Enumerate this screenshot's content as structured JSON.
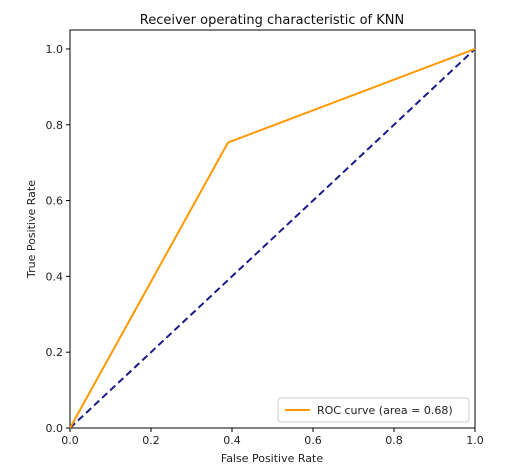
{
  "chart_data": {
    "type": "line",
    "title": "Receiver operating characteristic of KNN",
    "xlabel": "False Positive Rate",
    "ylabel": "True Positive Rate",
    "xlim": [
      0.0,
      1.0
    ],
    "ylim": [
      0.0,
      1.05
    ],
    "xticks": [
      0.0,
      0.2,
      0.4,
      0.6,
      0.8,
      1.0
    ],
    "xtick_labels": [
      "0.0",
      "0.2",
      "0.4",
      "0.6",
      "0.8",
      "1.0"
    ],
    "yticks": [
      0.0,
      0.2,
      0.4,
      0.6,
      0.8,
      1.0
    ],
    "ytick_labels": [
      "0.0",
      "0.2",
      "0.4",
      "0.6",
      "0.8",
      "1.0"
    ],
    "grid": false,
    "legend_placement": "lower-right",
    "series": [
      {
        "name": "ROC curve (area = 0.68)",
        "color": "#ff9900",
        "style": "solid",
        "x": [
          0.0,
          0.39,
          1.0
        ],
        "y": [
          0.0,
          0.753,
          1.0
        ]
      },
      {
        "color": "#1a1a8c",
        "style": "dashed",
        "x": [
          0.0,
          1.0
        ],
        "y": [
          0.0,
          1.0
        ]
      }
    ]
  }
}
